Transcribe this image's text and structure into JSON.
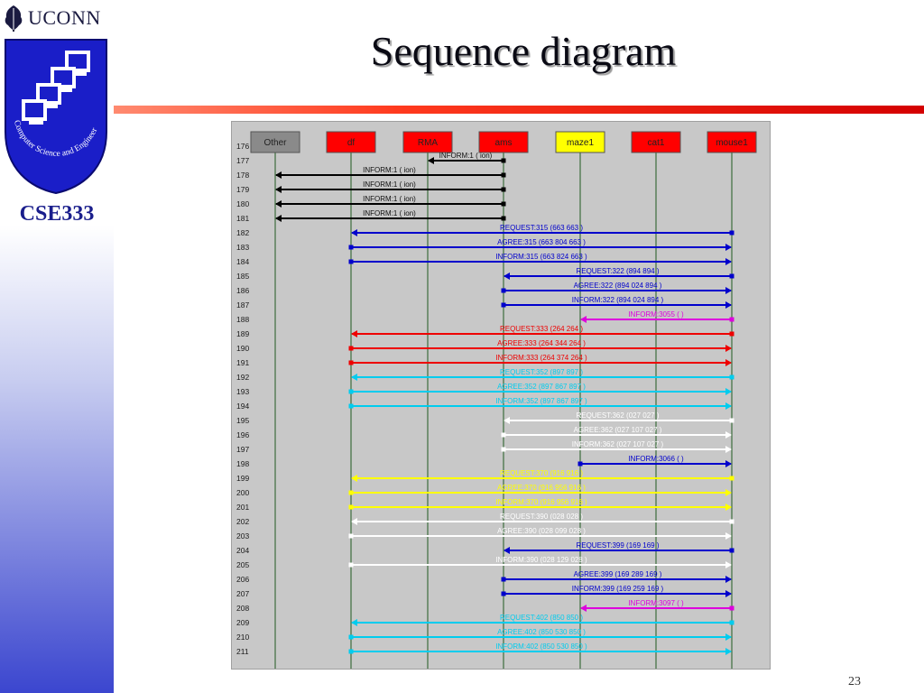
{
  "header": {
    "brand": "UCONN",
    "course": "CSE333",
    "logo_ring_text": "Computer Science and Engineering"
  },
  "slide": {
    "title": "Sequence diagram",
    "page_number": "23"
  },
  "diagram": {
    "agents": [
      {
        "name": "Other",
        "color": "#8a8a8a"
      },
      {
        "name": "df",
        "color": "#ff0000"
      },
      {
        "name": "RMA",
        "color": "#ff0000"
      },
      {
        "name": "ams",
        "color": "#ff0000"
      },
      {
        "name": "maze1",
        "color": "#ffff00"
      },
      {
        "name": "cat1",
        "color": "#ff0000"
      },
      {
        "name": "mouse1",
        "color": "#ff0000"
      }
    ],
    "row_labels": [
      "176",
      "177",
      "178",
      "179",
      "180",
      "181",
      "182",
      "183",
      "184",
      "185",
      "186",
      "187",
      "188",
      "189",
      "190",
      "191",
      "192",
      "193",
      "194",
      "195",
      "196",
      "197",
      "198",
      "199",
      "200",
      "201",
      "202",
      "203",
      "204",
      "205",
      "206",
      "207",
      "208",
      "209",
      "210",
      "211"
    ],
    "messages": [
      {
        "from": 3,
        "to": 2,
        "label": "INFORM:1 (      ion)",
        "color": "#000000"
      },
      {
        "from": 3,
        "to": 0,
        "label": "INFORM:1 (      ion)",
        "color": "#000000"
      },
      {
        "from": 3,
        "to": 0,
        "label": "INFORM:1 (      ion)",
        "color": "#000000"
      },
      {
        "from": 3,
        "to": 0,
        "label": "INFORM:1 (      ion)",
        "color": "#000000"
      },
      {
        "from": 3,
        "to": 0,
        "label": "INFORM:1 (      ion)",
        "color": "#000000"
      },
      {
        "from": 6,
        "to": 1,
        "label": "REQUEST:315 (663  663     )",
        "color": "#0000cc"
      },
      {
        "from": 1,
        "to": 6,
        "label": "AGREE:315 (663  804  663 )",
        "color": "#0000cc"
      },
      {
        "from": 1,
        "to": 6,
        "label": "INFORM:315 (663  824  663 )",
        "color": "#0000cc"
      },
      {
        "from": 6,
        "to": 3,
        "label": "REQUEST:322 (894  894     )",
        "color": "#0000cc"
      },
      {
        "from": 3,
        "to": 6,
        "label": "AGREE:322 (894  024  894 )",
        "color": "#0000cc"
      },
      {
        "from": 3,
        "to": 6,
        "label": "INFORM:322 (894  024  894 )",
        "color": "#0000cc"
      },
      {
        "from": 6,
        "to": 4,
        "label": "INFORM:3055 (        )",
        "color": "#dd00dd"
      },
      {
        "from": 6,
        "to": 1,
        "label": "REQUEST:333 (264  264     )",
        "color": "#ee0000"
      },
      {
        "from": 1,
        "to": 6,
        "label": "AGREE:333 (264  344  264 )",
        "color": "#ee0000"
      },
      {
        "from": 1,
        "to": 6,
        "label": "INFORM:333 (264  374  264 )",
        "color": "#ee0000"
      },
      {
        "from": 6,
        "to": 1,
        "label": "REQUEST:352 (897  897     )",
        "color": "#00ccee"
      },
      {
        "from": 1,
        "to": 6,
        "label": "AGREE:352 (897  867  897 )",
        "color": "#00ccee"
      },
      {
        "from": 1,
        "to": 6,
        "label": "INFORM:352 (897  867  897 )",
        "color": "#00ccee"
      },
      {
        "from": 6,
        "to": 3,
        "label": "REQUEST:362 (027  027     )",
        "color": "#ffffff"
      },
      {
        "from": 3,
        "to": 6,
        "label": "AGREE:362 (027  107  027 )",
        "color": "#ffffff"
      },
      {
        "from": 3,
        "to": 6,
        "label": "INFORM:362 (027  107  027 )",
        "color": "#ffffff"
      },
      {
        "from": 4,
        "to": 6,
        "label": "INFORM:3066 (        )",
        "color": "#0000cc"
      },
      {
        "from": 6,
        "to": 1,
        "label": "REQUEST:370 (916  916     )",
        "color": "#ffff00"
      },
      {
        "from": 1,
        "to": 6,
        "label": "AGREE:370 (916  956  916 )",
        "color": "#ffff00"
      },
      {
        "from": 1,
        "to": 6,
        "label": "INFORM:370 (916  956  916 )",
        "color": "#ffff00"
      },
      {
        "from": 6,
        "to": 1,
        "label": "REQUEST:390 (028  028     )",
        "color": "#ffffff"
      },
      {
        "from": 1,
        "to": 6,
        "label": "AGREE:390 (028  099  028 )",
        "color": "#ffffff"
      },
      {
        "from": 6,
        "to": 3,
        "label": "REQUEST:399 (169  169     )",
        "color": "#0000cc"
      },
      {
        "from": 1,
        "to": 6,
        "label": "INFORM:390 (028  129  028 )",
        "color": "#ffffff"
      },
      {
        "from": 3,
        "to": 6,
        "label": "AGREE:399 (169  289  169 )",
        "color": "#0000cc"
      },
      {
        "from": 3,
        "to": 6,
        "label": "INFORM:399 (169  259  169 )",
        "color": "#0000cc"
      },
      {
        "from": 6,
        "to": 4,
        "label": "INFORM:3097 (        )",
        "color": "#dd00dd"
      },
      {
        "from": 6,
        "to": 1,
        "label": "REQUEST:402 (850  850     )",
        "color": "#00ccee"
      },
      {
        "from": 1,
        "to": 6,
        "label": "AGREE:402 (850  530  850 )",
        "color": "#00ccee"
      },
      {
        "from": 1,
        "to": 6,
        "label": "INFORM:402 (850  530  850 )",
        "color": "#00ccee"
      }
    ]
  }
}
